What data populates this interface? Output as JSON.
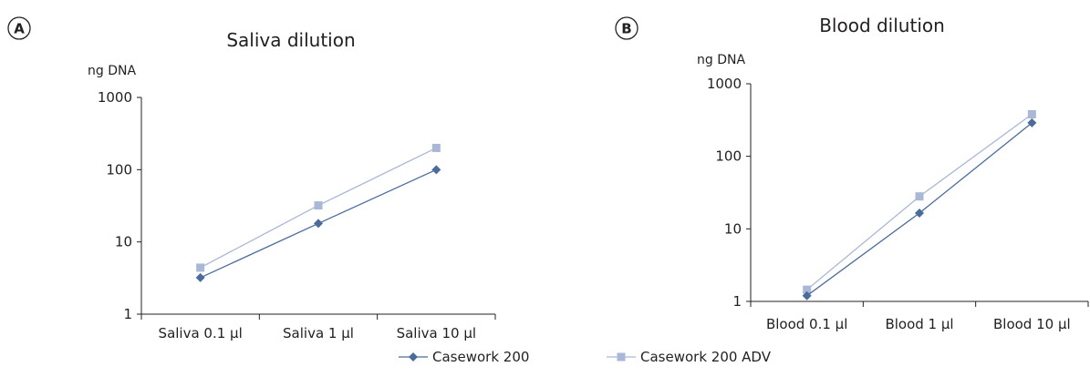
{
  "chart_data": [
    {
      "type": "line",
      "panel_label": "A",
      "title": "Saliva dilution",
      "ylabel": "ng DNA",
      "xlabel": "",
      "y_scale": "log",
      "ylim": [
        1,
        1000
      ],
      "y_ticks": [
        "1",
        "10",
        "100",
        "1000"
      ],
      "categories": [
        "Saliva 0.1 µl",
        "Saliva 1 µl",
        "Saliva 10  µl"
      ],
      "grid": false,
      "series": [
        {
          "name": "Casework 200",
          "color": "#4a6b9e",
          "marker": "diamond",
          "values": [
            3.2,
            18,
            100
          ]
        },
        {
          "name": "Casework 200 ADV",
          "color": "#a9b8d6",
          "marker": "square",
          "values": [
            4.4,
            32,
            200
          ]
        }
      ]
    },
    {
      "type": "line",
      "panel_label": "B",
      "title": "Blood dilution",
      "ylabel": "ng DNA",
      "xlabel": "",
      "y_scale": "log",
      "ylim": [
        1,
        1000
      ],
      "y_ticks": [
        "1",
        "10",
        "100",
        "1000"
      ],
      "categories": [
        "Blood 0.1 µl",
        "Blood 1 µl",
        "Blood 10  µl"
      ],
      "grid": false,
      "series": [
        {
          "name": "Casework 200",
          "color": "#4a6b9e",
          "marker": "diamond",
          "values": [
            1.2,
            16.5,
            290
          ]
        },
        {
          "name": "Casework 200 ADV",
          "color": "#a9b8d6",
          "marker": "square",
          "values": [
            1.45,
            28,
            380
          ]
        }
      ]
    }
  ],
  "legend": {
    "placement": "bottom-center",
    "items": [
      {
        "label": "Casework 200",
        "color": "#4a6b9e",
        "marker": "diamond"
      },
      {
        "label": "Casework 200 ADV",
        "color": "#a9b8d6",
        "marker": "square"
      }
    ]
  }
}
